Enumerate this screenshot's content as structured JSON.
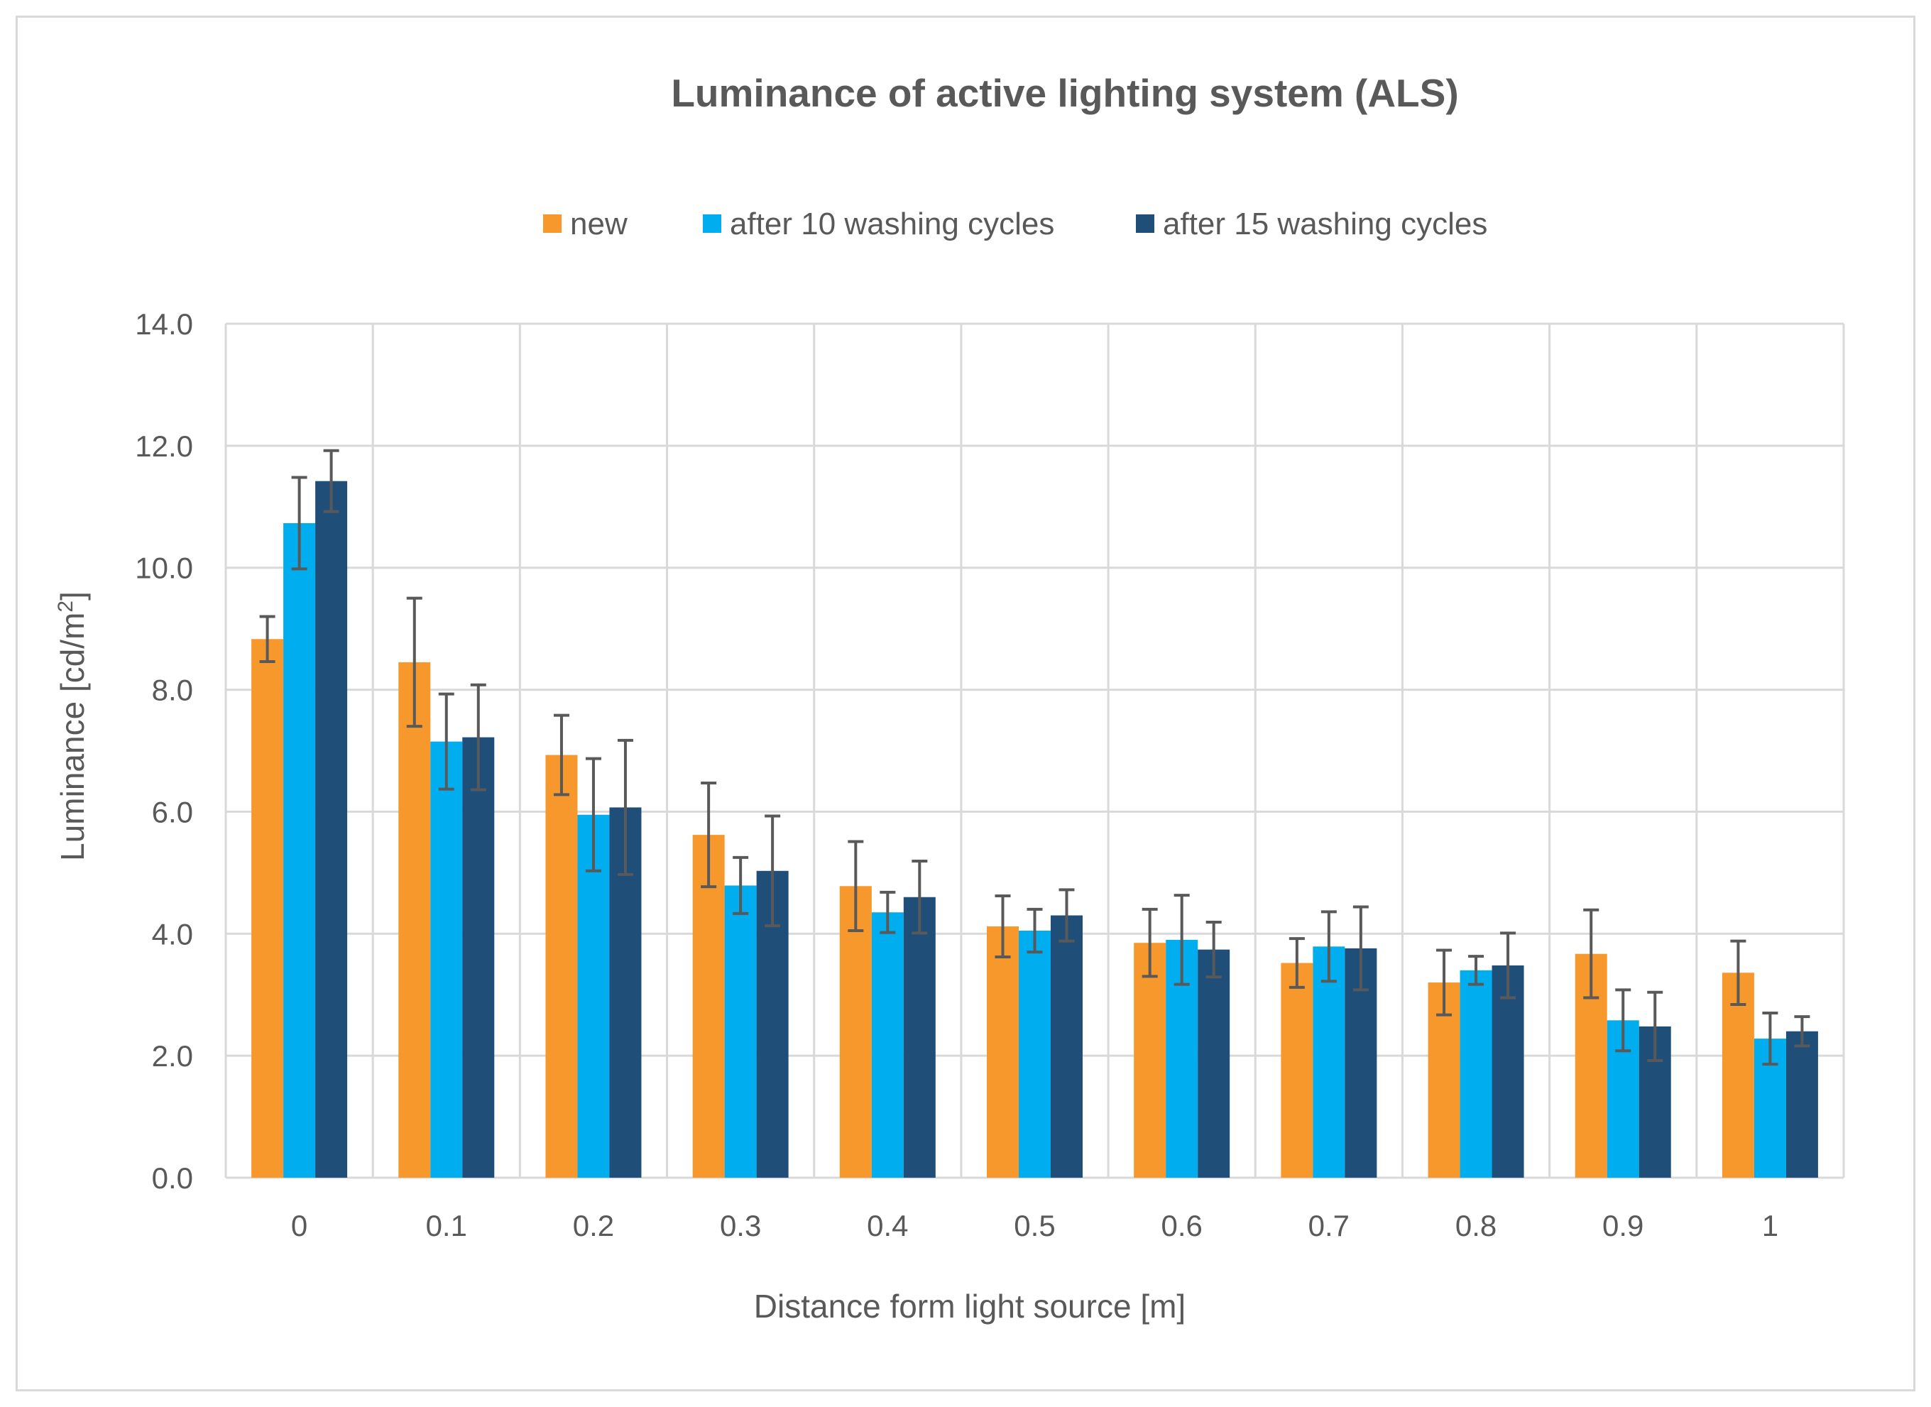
{
  "chart_data": {
    "type": "bar",
    "title": "Luminance of active lighting system (ALS)",
    "xlabel": "Distance form light source [m]",
    "ylabel": "Luminance [cd/m",
    "ylabel_sup": "2",
    "ylabel_end": "]",
    "categories": [
      "0",
      "0.1",
      "0.2",
      "0.3",
      "0.4",
      "0.5",
      "0.6",
      "0.7",
      "0.8",
      "0.9",
      "1"
    ],
    "y_ticks": [
      "0.0",
      "2.0",
      "4.0",
      "6.0",
      "8.0",
      "10.0",
      "12.0",
      "14.0"
    ],
    "ylim": [
      0,
      14
    ],
    "grid": true,
    "legend_position": "top",
    "error_bars": true,
    "series": [
      {
        "name": "new",
        "color": "#F7982C",
        "values": [
          8.83,
          8.45,
          6.93,
          5.62,
          4.78,
          4.12,
          3.85,
          3.52,
          3.2,
          3.67,
          3.36
        ],
        "errors": [
          0.37,
          1.05,
          0.65,
          0.85,
          0.73,
          0.5,
          0.55,
          0.4,
          0.53,
          0.72,
          0.52
        ]
      },
      {
        "name": "after 10 washing cycles",
        "color": "#00AEEF",
        "values": [
          10.73,
          7.15,
          5.95,
          4.79,
          4.35,
          4.05,
          3.9,
          3.79,
          3.4,
          2.58,
          2.28
        ],
        "errors": [
          0.75,
          0.78,
          0.92,
          0.46,
          0.33,
          0.35,
          0.73,
          0.57,
          0.23,
          0.5,
          0.42
        ]
      },
      {
        "name": "after 15 washing cycles",
        "color": "#1F4E79",
        "values": [
          11.42,
          7.22,
          6.07,
          5.03,
          4.6,
          4.3,
          3.74,
          3.76,
          3.48,
          2.48,
          2.4
        ],
        "errors": [
          0.5,
          0.86,
          1.1,
          0.9,
          0.59,
          0.42,
          0.45,
          0.68,
          0.53,
          0.56,
          0.24
        ]
      }
    ]
  }
}
